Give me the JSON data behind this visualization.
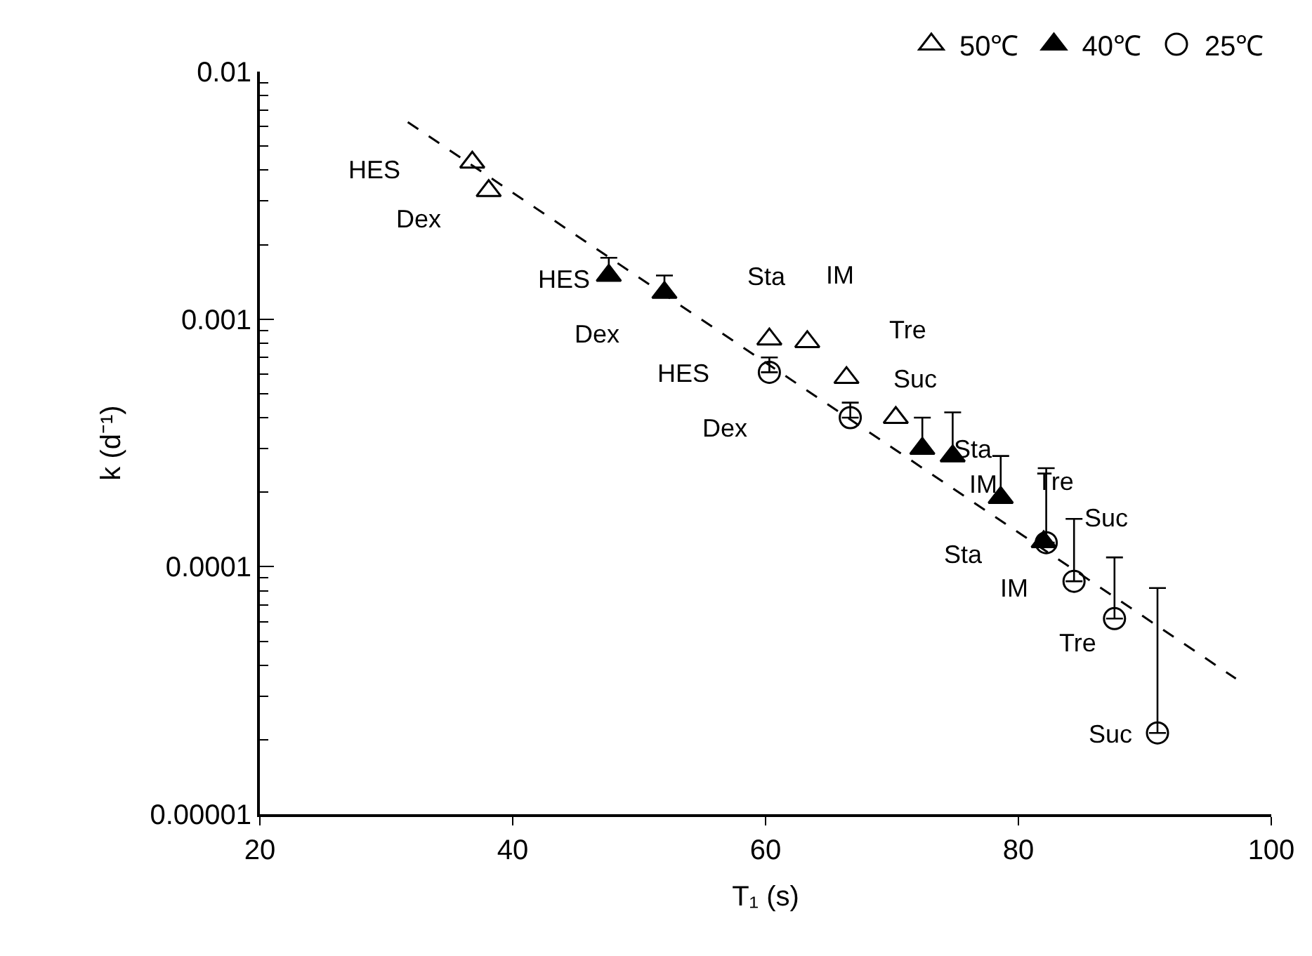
{
  "chart_data": {
    "type": "scatter",
    "xlabel": "T₁ (s)",
    "ylabel": "k (d⁻¹)",
    "log": "y",
    "xlim": [
      20,
      100
    ],
    "xticks": [
      20,
      40,
      60,
      80,
      100
    ],
    "ylim": [
      1e-05,
      0.01
    ],
    "yticks": [
      {
        "value": 1e-05,
        "label": "0.00001"
      },
      {
        "value": 0.0001,
        "label": "0.0001"
      },
      {
        "value": 0.001,
        "label": "0.001"
      },
      {
        "value": 0.01,
        "label": "0.01"
      }
    ],
    "legend": "top right",
    "series": [
      {
        "name": "50℃",
        "color": "#000000",
        "marker": "triangle",
        "x": [
          36.8,
          38.1,
          60.3,
          63.3,
          66.4,
          70.3
        ],
        "values": [
          0.0043,
          0.0033,
          0.00083,
          0.00081,
          0.00058,
          0.0004
        ]
      },
      {
        "name": "40℃",
        "color": "#000000",
        "marker": "triangle",
        "x": [
          47.6,
          52.0,
          72.4,
          74.8,
          78.6,
          82.0
        ],
        "values": [
          0.0015,
          0.00128,
          0.0003,
          0.00028,
          0.00019,
          0.000126
        ],
        "errors": [
          [
            0.0015,
            0.00177
          ],
          [
            0.00128,
            0.0015
          ],
          [
            0.0003,
            0.0004
          ],
          [
            0.00028,
            0.00042
          ],
          [
            0.00019,
            0.00028
          ],
          null
        ]
      },
      {
        "name": "25℃",
        "color": "#000000",
        "marker": "circle",
        "x": [
          60.3,
          66.7,
          82.2,
          84.4,
          87.6,
          91.0
        ],
        "values": [
          0.00061,
          0.0004,
          0.000125,
          8.73e-05,
          6.17e-05,
          2.13e-05
        ],
        "errors": [
          [
            0.00061,
            0.0007
          ],
          [
            0.0004,
            0.00046
          ],
          [
            0.000125,
            0.00025
          ],
          [
            8.73e-05,
            0.000156
          ],
          [
            6.17e-05,
            0.000109
          ],
          [
            2.13e-05,
            8.2e-05
          ]
        ]
      },
      {
        "type": "line",
        "color": "#000000",
        "line_style": "dashed",
        "marker": "none",
        "x": [
          31.7,
          97.2
        ],
        "values": [
          0.00625,
          3.53e-05
        ]
      }
    ],
    "annotations": [
      {
        "text": "HES",
        "x": 36.8,
        "y": 0.0043
      },
      {
        "text": "Dex",
        "x": 38.1,
        "y": 0.0033
      },
      {
        "text": "HES",
        "x": 47.6,
        "y": 0.0015
      },
      {
        "text": "Dex",
        "x": 52.0,
        "y": 0.00128
      },
      {
        "text": "Sta",
        "x": 60.3,
        "y": 0.00083
      },
      {
        "text": "IM",
        "x": 63.3,
        "y": 0.00081
      },
      {
        "text": "Tre",
        "x": 66.4,
        "y": 0.00058
      },
      {
        "text": "HES",
        "x": 60.3,
        "y": 0.00061
      },
      {
        "text": "Suc",
        "x": 70.3,
        "y": 0.0004
      },
      "Dex",
      {
        "text": "Sta",
        "x": 72.4,
        "y": 0.0003
      },
      {
        "text": "IM",
        "x": 74.8,
        "y": 0.00028
      },
      {
        "text": "Tre",
        "x": 78.6,
        "y": 0.00019
      },
      {
        "text": "Suc",
        "x": 82.0,
        "y": 0.000126
      },
      {
        "text": "Sta",
        "x": 82.2,
        "y": 0.000125
      },
      {
        "text": "IM",
        "x": 84.4,
        "y": 8.73e-05
      },
      {
        "text": "Tre",
        "x": 87.6,
        "y": 6.17e-05
      },
      {
        "text": "Suc",
        "x": 91.0,
        "y": 2.13e-05
      }
    ]
  }
}
